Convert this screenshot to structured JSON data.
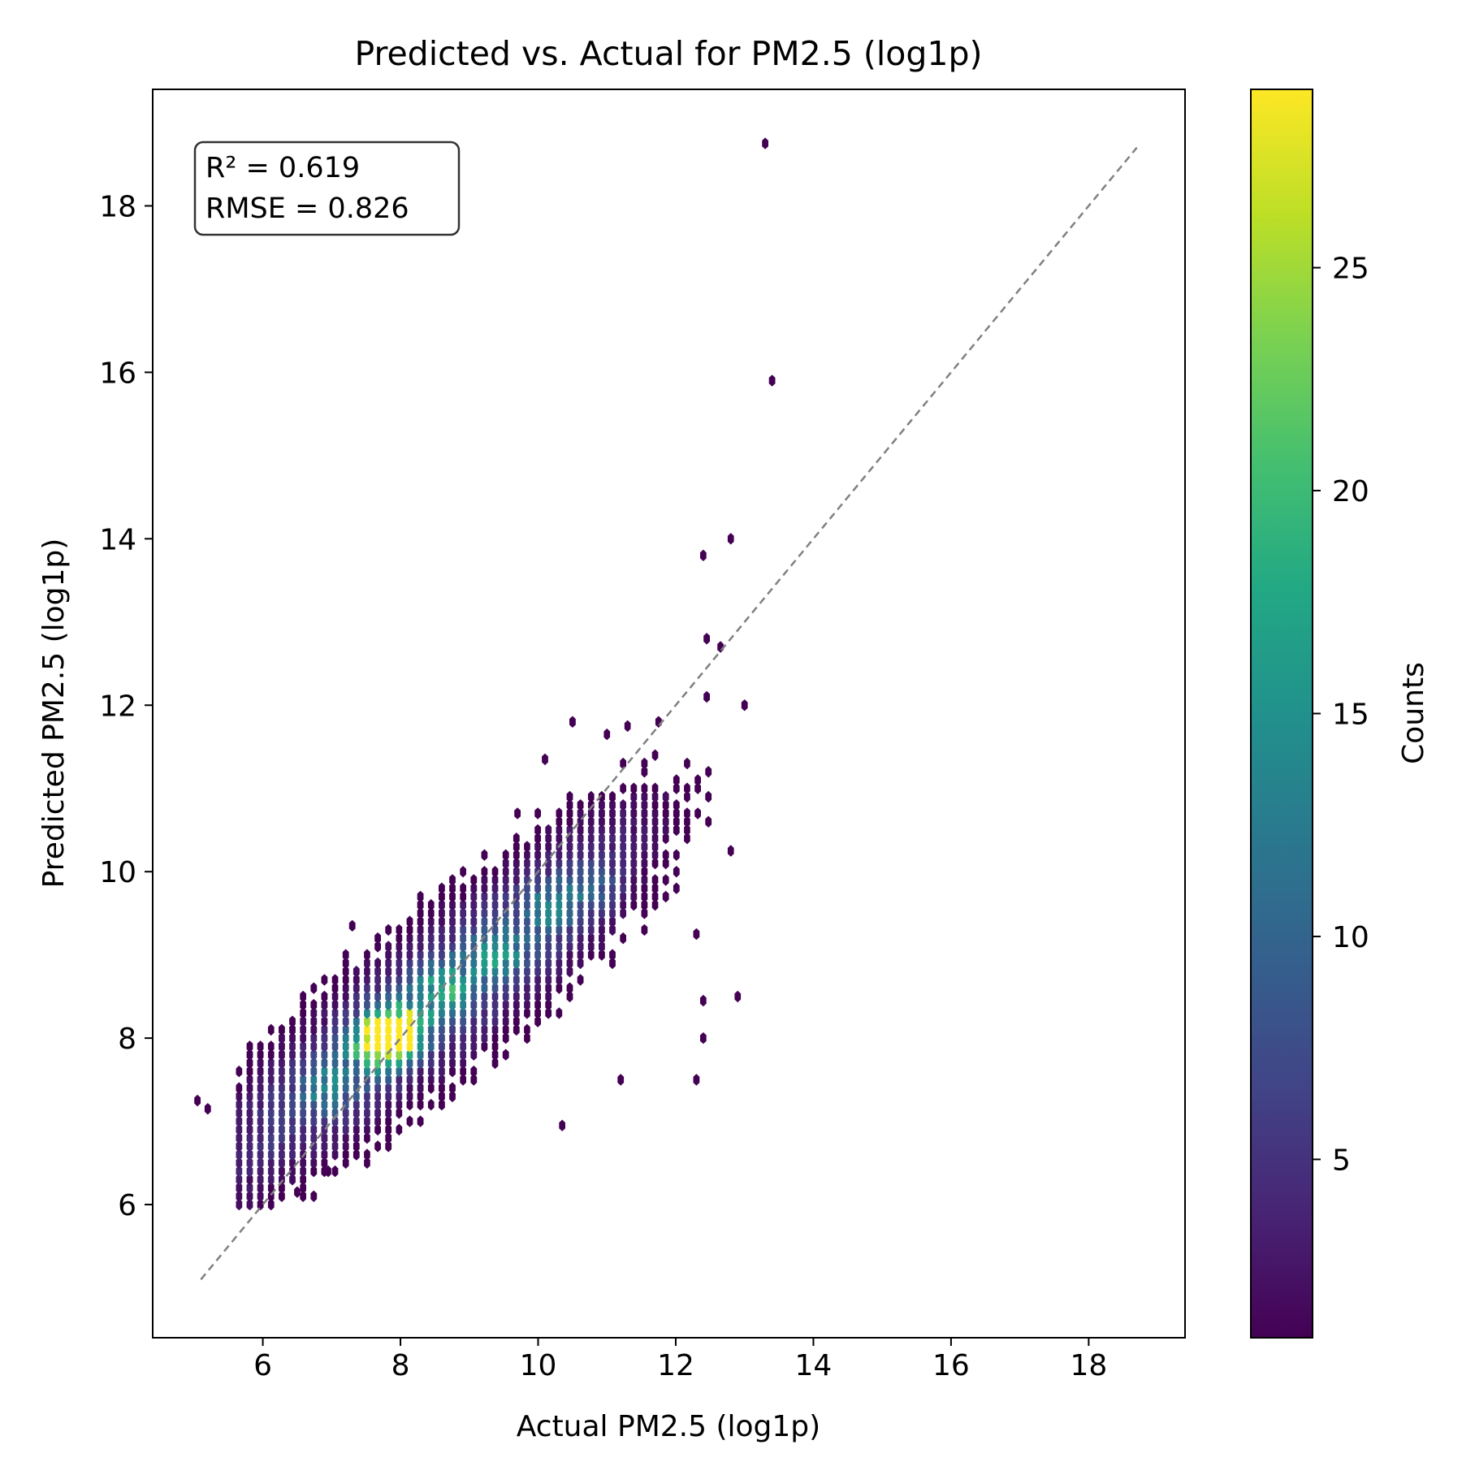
{
  "chart_data": {
    "type": "heatmap",
    "subtype": "hexbin",
    "title": "Predicted vs. Actual for PM2.5 (log1p)",
    "xlabel": "Actual PM2.5 (log1p)",
    "ylabel": "Predicted PM2.5 (log1p)",
    "xlim": [
      4.4,
      19.4
    ],
    "ylim": [
      4.4,
      19.4
    ],
    "xticks": [
      6,
      8,
      10,
      12,
      14,
      16,
      18
    ],
    "yticks": [
      6,
      8,
      10,
      12,
      14,
      16,
      18
    ],
    "xtick_labels": [
      "6",
      "8",
      "10",
      "12",
      "14",
      "16",
      "18"
    ],
    "ytick_labels": [
      "6",
      "8",
      "10",
      "12",
      "14",
      "16",
      "18"
    ],
    "grid": false,
    "annotation": {
      "lines": [
        "R² = 0.619",
        "RMSE = 0.826"
      ],
      "position": "top-left"
    },
    "reference_line": {
      "style": "dashed",
      "color": "#808080",
      "x": [
        5.1,
        18.7
      ],
      "y": [
        5.1,
        18.7
      ]
    },
    "colorbar": {
      "label": "Counts",
      "colormap": "viridis",
      "range": [
        1,
        29
      ],
      "ticks": [
        5,
        10,
        15,
        20,
        25
      ],
      "tick_labels": [
        "5",
        "10",
        "15",
        "20",
        "25"
      ]
    },
    "cluster_centers": [
      {
        "x": 7.8,
        "y": 8.05,
        "count": 27
      },
      {
        "x": 8.0,
        "y": 8.1,
        "count": 25
      },
      {
        "x": 7.7,
        "y": 7.9,
        "count": 22
      },
      {
        "x": 8.6,
        "y": 8.6,
        "count": 13
      },
      {
        "x": 9.4,
        "y": 9.0,
        "count": 10
      },
      {
        "x": 10.2,
        "y": 9.6,
        "count": 9
      },
      {
        "x": 10.8,
        "y": 9.8,
        "count": 7
      },
      {
        "x": 6.9,
        "y": 7.4,
        "count": 8
      }
    ],
    "isolated_points": [
      {
        "x": 13.3,
        "y": 18.75,
        "count": 1
      },
      {
        "x": 13.4,
        "y": 15.9,
        "count": 1
      },
      {
        "x": 12.8,
        "y": 14.0,
        "count": 1
      },
      {
        "x": 12.4,
        "y": 13.8,
        "count": 1
      },
      {
        "x": 12.45,
        "y": 12.8,
        "count": 1
      },
      {
        "x": 12.65,
        "y": 12.7,
        "count": 1
      },
      {
        "x": 13.0,
        "y": 12.0,
        "count": 1
      },
      {
        "x": 12.45,
        "y": 12.1,
        "count": 1
      },
      {
        "x": 12.9,
        "y": 8.5,
        "count": 1
      },
      {
        "x": 12.4,
        "y": 8.45,
        "count": 1
      },
      {
        "x": 12.4,
        "y": 8.0,
        "count": 1
      },
      {
        "x": 12.3,
        "y": 7.5,
        "count": 1
      },
      {
        "x": 12.8,
        "y": 10.25,
        "count": 1
      },
      {
        "x": 12.3,
        "y": 9.25,
        "count": 1
      },
      {
        "x": 11.2,
        "y": 7.5,
        "count": 1
      },
      {
        "x": 10.35,
        "y": 6.95,
        "count": 1
      },
      {
        "x": 5.05,
        "y": 7.25,
        "count": 1
      },
      {
        "x": 5.2,
        "y": 7.15,
        "count": 1
      },
      {
        "x": 6.5,
        "y": 6.15,
        "count": 1
      },
      {
        "x": 6.95,
        "y": 6.4,
        "count": 1
      },
      {
        "x": 10.5,
        "y": 11.8,
        "count": 1
      },
      {
        "x": 11.3,
        "y": 11.75,
        "count": 1
      },
      {
        "x": 11.75,
        "y": 11.8,
        "count": 1
      },
      {
        "x": 11.0,
        "y": 11.65,
        "count": 1
      },
      {
        "x": 10.1,
        "y": 11.35,
        "count": 1
      },
      {
        "x": 9.7,
        "y": 10.7,
        "count": 1
      },
      {
        "x": 7.3,
        "y": 9.35,
        "count": 1
      }
    ]
  }
}
